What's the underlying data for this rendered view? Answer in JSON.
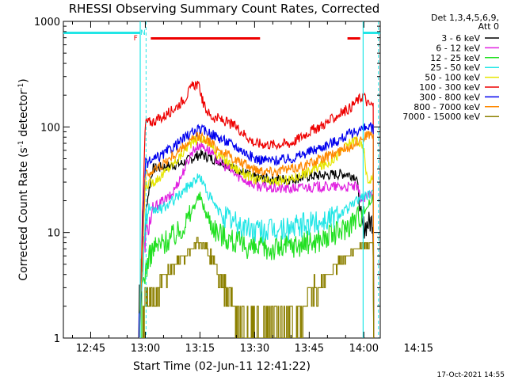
{
  "chart_data": {
    "type": "line",
    "title": "RHESSI Observing Summary Count Rates, Corrected",
    "xlabel": "Start Time (02-Jun-11 12:41:22)",
    "ylabel_parts": [
      "Corrected Count Rate (s",
      "-1",
      " detector",
      "-1",
      ")"
    ],
    "yscale": "log",
    "ylim": [
      1,
      1000
    ],
    "xlim_minutes": [
      12.5,
      99.5
    ],
    "x_ticks": [
      {
        "m": 20,
        "label": "12:45"
      },
      {
        "m": 35,
        "label": "13:00"
      },
      {
        "m": 50,
        "label": "13:15"
      },
      {
        "m": 65,
        "label": "13:30"
      },
      {
        "m": 80,
        "label": "13:45"
      },
      {
        "m": 95,
        "label": "14:00"
      },
      {
        "m": 110,
        "label": "14:15"
      }
    ],
    "y_ticks": [
      {
        "v": 1,
        "label": "1"
      },
      {
        "v": 10,
        "label": "10"
      },
      {
        "v": 100,
        "label": "100"
      },
      {
        "v": 1000,
        "label": "1000"
      }
    ],
    "legend_header": [
      "Det 1,3,4,5,6,9,",
      "Att 0"
    ],
    "series": [
      {
        "name": "3 - 6 keV",
        "color": "#000000",
        "points": [
          [
            33.2,
            1
          ],
          [
            33.3,
            3
          ],
          [
            34,
            4
          ],
          [
            35.5,
            20
          ],
          [
            37,
            40
          ],
          [
            40,
            42
          ],
          [
            45,
            45
          ],
          [
            50,
            55
          ],
          [
            55,
            48
          ],
          [
            60,
            40
          ],
          [
            65,
            33
          ],
          [
            70,
            32
          ],
          [
            75,
            32
          ],
          [
            80,
            34
          ],
          [
            85,
            35
          ],
          [
            90,
            36
          ],
          [
            93,
            34
          ],
          [
            94.5,
            11
          ],
          [
            96,
            12
          ],
          [
            97.6,
            13
          ],
          [
            97.7,
            1
          ]
        ]
      },
      {
        "name": "6 - 12 keV",
        "color": "#e020e0",
        "points": [
          [
            33.3,
            1
          ],
          [
            34,
            6
          ],
          [
            36,
            12
          ],
          [
            38,
            18
          ],
          [
            42,
            22
          ],
          [
            45,
            35
          ],
          [
            48,
            60
          ],
          [
            50,
            68
          ],
          [
            52,
            62
          ],
          [
            55,
            48
          ],
          [
            60,
            35
          ],
          [
            65,
            28
          ],
          [
            70,
            26
          ],
          [
            75,
            26
          ],
          [
            80,
            27
          ],
          [
            85,
            27
          ],
          [
            90,
            27
          ],
          [
            93,
            27
          ],
          [
            94.5,
            20
          ],
          [
            96,
            22
          ],
          [
            97.6,
            24
          ],
          [
            97.7,
            1
          ]
        ]
      },
      {
        "name": "12 - 25 keV",
        "color": "#22e022",
        "points": [
          [
            34,
            3
          ],
          [
            35.5,
            5
          ],
          [
            37,
            7
          ],
          [
            40,
            8
          ],
          [
            44,
            10
          ],
          [
            47,
            14
          ],
          [
            49,
            20
          ],
          [
            50,
            22
          ],
          [
            52,
            14
          ],
          [
            55,
            10
          ],
          [
            60,
            8
          ],
          [
            65,
            7
          ],
          [
            70,
            7
          ],
          [
            75,
            7.5
          ],
          [
            80,
            8
          ],
          [
            85,
            9
          ],
          [
            88,
            10
          ],
          [
            91,
            12
          ],
          [
            93,
            14
          ],
          [
            94.5,
            15
          ],
          [
            96,
            18
          ],
          [
            97.6,
            21
          ],
          [
            97.7,
            1
          ]
        ]
      },
      {
        "name": "25 - 50 keV",
        "color": "#22e6e6",
        "points": [
          [
            33.3,
            1
          ],
          [
            35,
            14
          ],
          [
            37,
            16
          ],
          [
            40,
            17
          ],
          [
            44,
            22
          ],
          [
            47,
            28
          ],
          [
            49,
            32
          ],
          [
            50,
            34
          ],
          [
            52,
            24
          ],
          [
            55,
            16
          ],
          [
            60,
            12
          ],
          [
            65,
            10.5
          ],
          [
            70,
            10.5
          ],
          [
            75,
            11
          ],
          [
            80,
            12
          ],
          [
            85,
            13.5
          ],
          [
            88,
            15
          ],
          [
            91,
            17
          ],
          [
            93,
            20
          ],
          [
            94.5,
            22
          ],
          [
            97.6,
            23
          ],
          [
            97.7,
            1
          ]
        ]
      },
      {
        "name": "50 - 100 keV",
        "color": "#e6e600",
        "points": [
          [
            33.3,
            1
          ],
          [
            35,
            28
          ],
          [
            37,
            30
          ],
          [
            40,
            36
          ],
          [
            44,
            50
          ],
          [
            47,
            68
          ],
          [
            50,
            80
          ],
          [
            52,
            72
          ],
          [
            55,
            55
          ],
          [
            60,
            40
          ],
          [
            65,
            32
          ],
          [
            70,
            30
          ],
          [
            75,
            32
          ],
          [
            80,
            38
          ],
          [
            85,
            45
          ],
          [
            88,
            55
          ],
          [
            91,
            70
          ],
          [
            93,
            78
          ],
          [
            95,
            60
          ],
          [
            96,
            30
          ],
          [
            97.6,
            35
          ],
          [
            97.7,
            1
          ]
        ]
      },
      {
        "name": "100 - 300 keV",
        "color": "#ee0000",
        "points": [
          [
            33.3,
            1
          ],
          [
            35,
            110
          ],
          [
            37,
            112
          ],
          [
            40,
            125
          ],
          [
            44,
            160
          ],
          [
            46,
            190
          ],
          [
            48,
            245
          ],
          [
            49,
            255
          ],
          [
            50,
            230
          ],
          [
            51,
            160
          ],
          [
            53,
            125
          ],
          [
            55,
            120
          ],
          [
            60,
            100
          ],
          [
            65,
            70
          ],
          [
            70,
            68
          ],
          [
            75,
            70
          ],
          [
            80,
            90
          ],
          [
            85,
            110
          ],
          [
            88,
            130
          ],
          [
            91,
            150
          ],
          [
            93,
            175
          ],
          [
            95,
            200
          ],
          [
            96,
            165
          ],
          [
            97.6,
            160
          ],
          [
            97.7,
            1
          ]
        ]
      },
      {
        "name": "300 - 800 keV",
        "color": "#0000ee",
        "points": [
          [
            33.3,
            1
          ],
          [
            35,
            45
          ],
          [
            37,
            48
          ],
          [
            40,
            55
          ],
          [
            44,
            70
          ],
          [
            47,
            85
          ],
          [
            50,
            95
          ],
          [
            52,
            90
          ],
          [
            55,
            80
          ],
          [
            60,
            65
          ],
          [
            65,
            50
          ],
          [
            70,
            48
          ],
          [
            75,
            50
          ],
          [
            80,
            58
          ],
          [
            85,
            68
          ],
          [
            88,
            75
          ],
          [
            91,
            85
          ],
          [
            93,
            92
          ],
          [
            95,
            96
          ],
          [
            97.6,
            100
          ],
          [
            97.7,
            1
          ]
        ]
      },
      {
        "name": "800 - 7000 keV",
        "color": "#ff8800",
        "points": [
          [
            33.3,
            1
          ],
          [
            35,
            35
          ],
          [
            37,
            38
          ],
          [
            40,
            45
          ],
          [
            44,
            58
          ],
          [
            47,
            72
          ],
          [
            50,
            82
          ],
          [
            52,
            76
          ],
          [
            55,
            62
          ],
          [
            60,
            48
          ],
          [
            65,
            40
          ],
          [
            70,
            38
          ],
          [
            75,
            40
          ],
          [
            80,
            45
          ],
          [
            85,
            52
          ],
          [
            88,
            58
          ],
          [
            91,
            65
          ],
          [
            93,
            72
          ],
          [
            95,
            82
          ],
          [
            97.6,
            85
          ],
          [
            97.7,
            1
          ]
        ]
      },
      {
        "name": "7000 - 15000 keV",
        "color": "#8c8000",
        "points": [
          [
            34,
            1
          ],
          [
            35,
            2
          ],
          [
            37,
            2.5
          ],
          [
            40,
            3.5
          ],
          [
            43,
            5
          ],
          [
            46,
            6
          ],
          [
            48,
            8
          ],
          [
            50,
            8
          ],
          [
            52,
            7
          ],
          [
            54,
            5
          ],
          [
            57,
            3
          ],
          [
            60,
            2
          ],
          [
            63,
            1.2
          ],
          [
            67,
            1.1
          ],
          [
            72,
            1.2
          ],
          [
            76,
            1.5
          ],
          [
            80,
            2.5
          ],
          [
            84,
            3.5
          ],
          [
            88,
            5
          ],
          [
            91,
            6
          ],
          [
            93,
            7
          ],
          [
            95,
            7.5
          ],
          [
            97.6,
            8
          ],
          [
            97.7,
            1
          ]
        ]
      }
    ],
    "markers": [
      {
        "label": "F",
        "color": "#ee0000"
      },
      {
        "label": "N",
        "color": "#22e6e6"
      }
    ],
    "marker_ranges": {
      "cyan_bars": [
        [
          12.5,
          33.6
        ],
        [
          94.8,
          99.5
        ]
      ],
      "red_bars": [
        [
          36.5,
          66.5
        ],
        [
          90.5,
          94.0
        ]
      ],
      "cyan_solid_lines": [
        33.6,
        94.8
      ],
      "cyan_dashed_lines": [
        35.2,
        99.0
      ],
      "marker_positions": {
        "F": 34.2,
        "N": 36.4
      }
    }
  },
  "footer_date": "17-Oct-2021 14:55"
}
